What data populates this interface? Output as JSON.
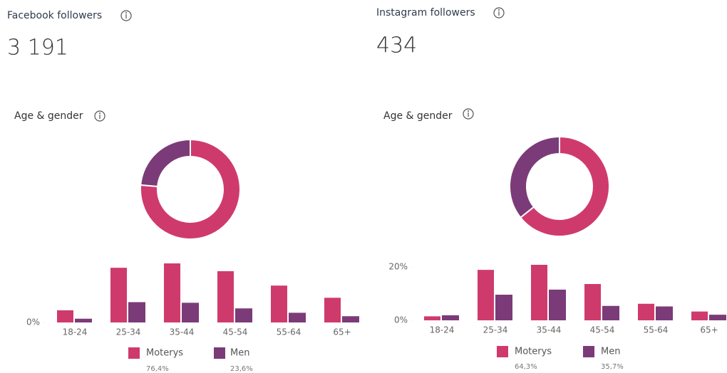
{
  "panels": [
    {
      "title": "Facebook followers",
      "count": "3 191",
      "section": "Age & gender"
    },
    {
      "title": "Instagram followers",
      "count": "434",
      "section": "Age & gender"
    }
  ],
  "chart_data": [
    {
      "type": "pie",
      "categories": [
        "Moterys",
        "Men"
      ],
      "values": [
        76.4,
        23.6
      ],
      "value_labels": [
        "76,4%",
        "23,6%"
      ],
      "colors": [
        "#cf3a6c",
        "#7b3b78"
      ]
    },
    {
      "type": "bar",
      "categories": [
        "18-24",
        "25-34",
        "35-44",
        "45-54",
        "55-64",
        "65+"
      ],
      "series": [
        {
          "color": "#cf3a6c",
          "values": [
            3.9,
            17.5,
            18.9,
            16.4,
            11.8,
            7.9
          ]
        },
        {
          "color": "#7b3b78",
          "values": [
            1.2,
            6.5,
            6.3,
            4.5,
            3.1,
            2.0
          ]
        }
      ],
      "ylim": [
        0,
        22
      ],
      "yticks": [
        {
          "value": 0,
          "label": "0%"
        }
      ]
    },
    {
      "type": "pie",
      "categories": [
        "Moterys",
        "Men"
      ],
      "values": [
        64.3,
        35.7
      ],
      "value_labels": [
        "64,3%",
        "35,7%"
      ],
      "colors": [
        "#cf3a6c",
        "#7b3b78"
      ]
    },
    {
      "type": "bar",
      "categories": [
        "18-24",
        "25-34",
        "35-44",
        "45-54",
        "55-64",
        "65+"
      ],
      "series": [
        {
          "color": "#cf3a6c",
          "values": [
            1.5,
            18.9,
            20.8,
            13.6,
            6.2,
            3.3
          ]
        },
        {
          "color": "#7b3b78",
          "values": [
            1.9,
            9.6,
            11.5,
            5.4,
            5.2,
            2.1
          ]
        }
      ],
      "ylim": [
        0,
        24
      ],
      "yticks": [
        {
          "value": 0,
          "label": "0%"
        },
        {
          "value": 20,
          "label": "20%"
        }
      ]
    }
  ]
}
